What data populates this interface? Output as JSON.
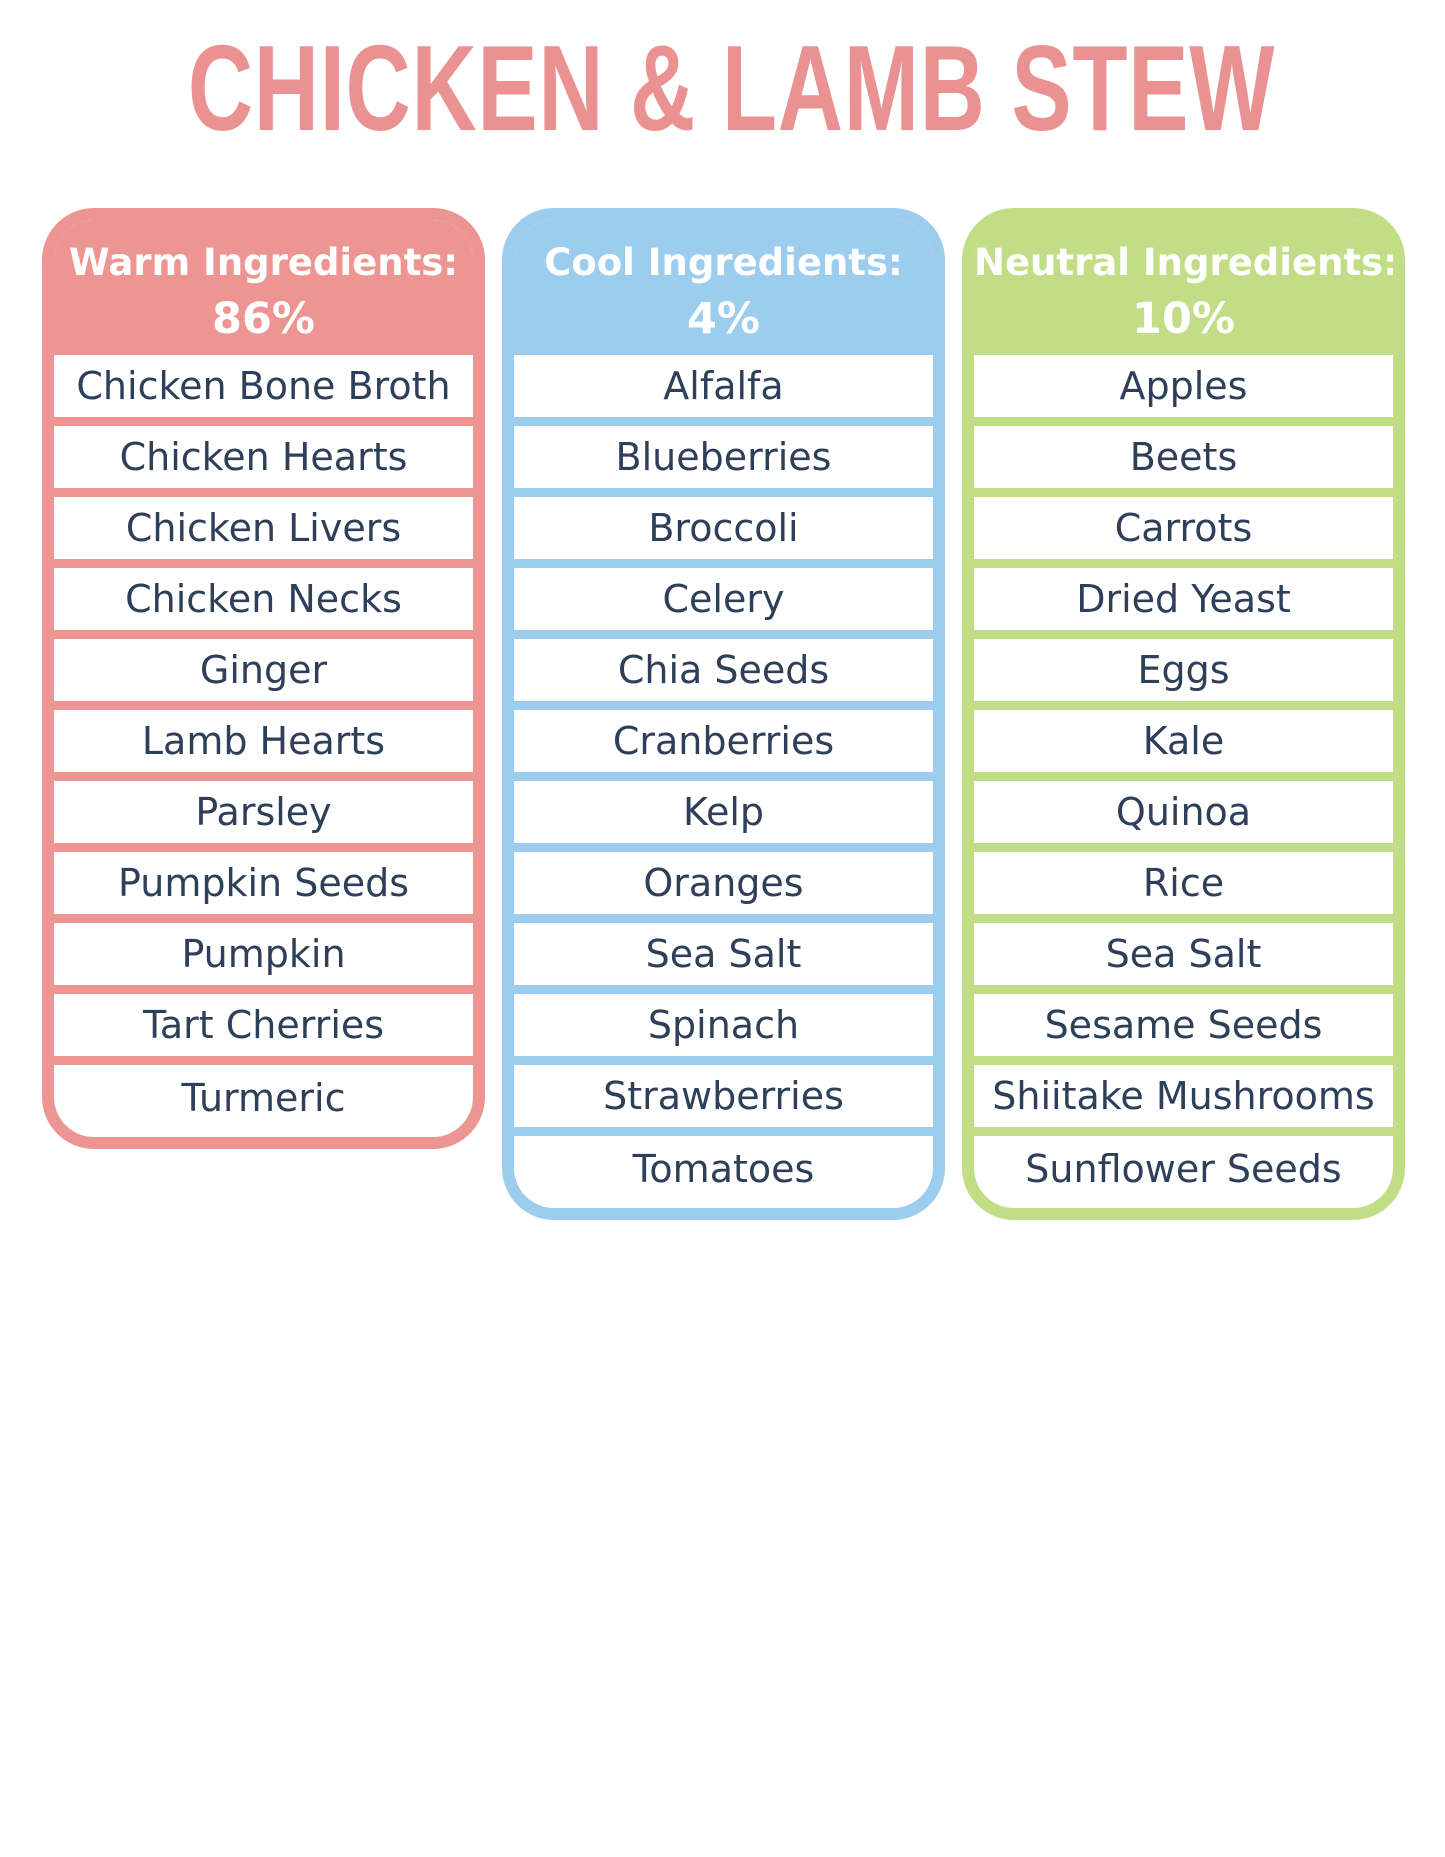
{
  "title": "CHICKEN & LAMB STEW",
  "colors": {
    "title": "#ea9291",
    "warm": "#ed9593",
    "cool": "#9ccdee",
    "neutral": "#c1dd86",
    "item_text": "#2e3f59"
  },
  "columns": [
    {
      "heading": "Warm Ingredients:",
      "percent": "86%",
      "items": [
        "Chicken Bone Broth",
        "Chicken Hearts",
        "Chicken Livers",
        "Chicken Necks",
        "Ginger",
        "Lamb Hearts",
        "Parsley",
        "Pumpkin Seeds",
        "Pumpkin",
        "Tart Cherries",
        "Turmeric"
      ]
    },
    {
      "heading": "Cool Ingredients:",
      "percent": "4%",
      "items": [
        "Alfalfa",
        "Blueberries",
        "Broccoli",
        "Celery",
        "Chia Seeds",
        "Cranberries",
        "Kelp",
        "Oranges",
        "Sea Salt",
        "Spinach",
        "Strawberries",
        "Tomatoes"
      ]
    },
    {
      "heading": "Neutral Ingredients:",
      "percent": "10%",
      "items": [
        "Apples",
        "Beets",
        "Carrots",
        "Dried Yeast",
        "Eggs",
        "Kale",
        "Quinoa",
        "Rice",
        "Sea Salt",
        "Sesame Seeds",
        "Shiitake Mushrooms",
        "Sunflower Seeds"
      ]
    }
  ]
}
